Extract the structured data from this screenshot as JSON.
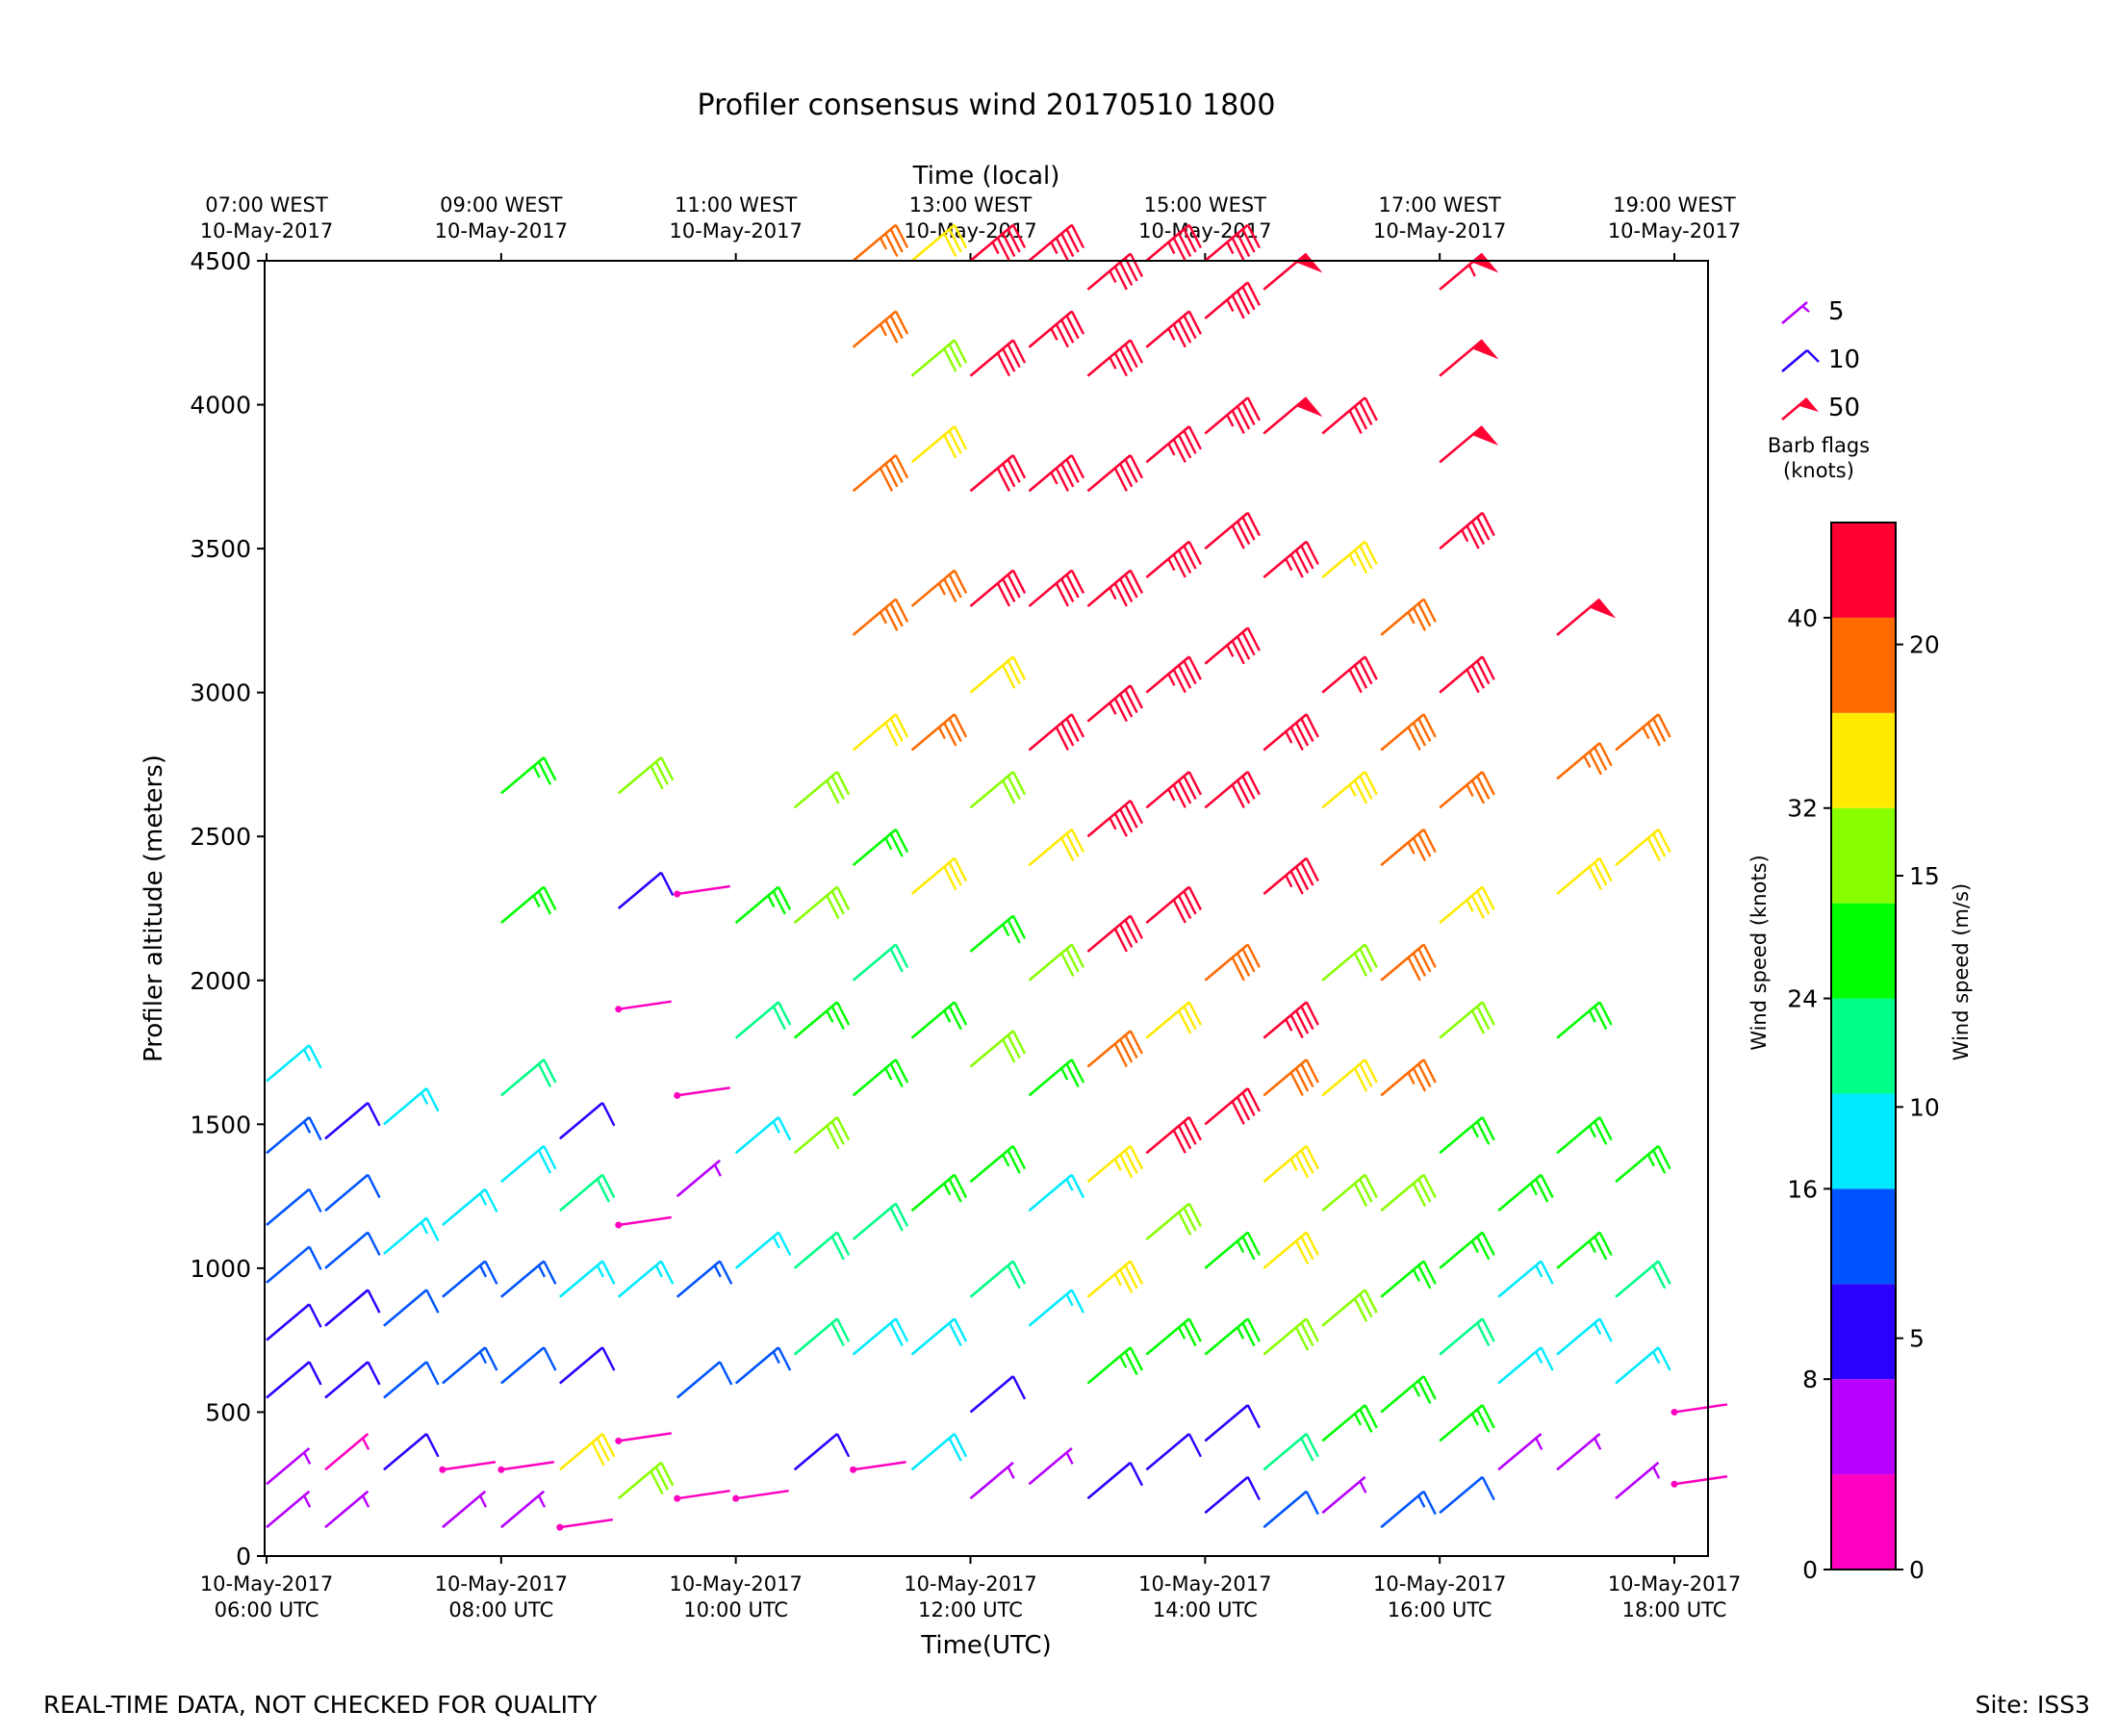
{
  "chart_data": {
    "type": "wind_barbs",
    "title": "Profiler consensus wind 20170510 1800",
    "top_axis_label": "Time (local)",
    "top_ticks": [
      {
        "line1": "07:00 WEST",
        "line2": "10-May-2017"
      },
      {
        "line1": "09:00 WEST",
        "line2": "10-May-2017"
      },
      {
        "line1": "11:00 WEST",
        "line2": "10-May-2017"
      },
      {
        "line1": "13:00 WEST",
        "line2": "10-May-2017"
      },
      {
        "line1": "15:00 WEST",
        "line2": "10-May-2017"
      },
      {
        "line1": "17:00 WEST",
        "line2": "10-May-2017"
      },
      {
        "line1": "19:00 WEST",
        "line2": "10-May-2017"
      }
    ],
    "xlabel": "Time(UTC)",
    "x_ticks": [
      {
        "line1": "10-May-2017",
        "line2": "06:00 UTC"
      },
      {
        "line1": "10-May-2017",
        "line2": "08:00 UTC"
      },
      {
        "line1": "10-May-2017",
        "line2": "10:00 UTC"
      },
      {
        "line1": "10-May-2017",
        "line2": "12:00 UTC"
      },
      {
        "line1": "10-May-2017",
        "line2": "14:00 UTC"
      },
      {
        "line1": "10-May-2017",
        "line2": "16:00 UTC"
      },
      {
        "line1": "10-May-2017",
        "line2": "18:00 UTC"
      }
    ],
    "x_hours_range": [
      6,
      18.4
    ],
    "ylabel": "Profiler altitude (meters)",
    "ylim": [
      0,
      4500
    ],
    "y_ticks": [
      "0",
      "500",
      "1000",
      "1500",
      "2000",
      "2500",
      "3000",
      "3500",
      "4000",
      "4500"
    ],
    "times_utc_hours": [
      6.0,
      6.5,
      7.0,
      7.5,
      8.0,
      8.5,
      9.0,
      9.5,
      10.0,
      10.5,
      11.0,
      11.5,
      12.0,
      12.5,
      13.0,
      13.5,
      14.0,
      14.5,
      15.0,
      15.5,
      16.0,
      16.5,
      17.0,
      17.5,
      18.0
    ],
    "series": [
      {
        "time": 6.0,
        "levels": [
          [
            100,
            5
          ],
          [
            250,
            7
          ],
          [
            550,
            10
          ],
          [
            750,
            11
          ],
          [
            950,
            12
          ],
          [
            1150,
            12
          ],
          [
            1400,
            13
          ],
          [
            1650,
            17
          ]
        ]
      },
      {
        "time": 6.5,
        "levels": [
          [
            100,
            5
          ],
          [
            300,
            3
          ],
          [
            550,
            9
          ],
          [
            800,
            11
          ],
          [
            1000,
            12
          ],
          [
            1200,
            12
          ],
          [
            1450,
            11
          ]
        ]
      },
      {
        "time": 7.0,
        "levels": [
          [
            300,
            9
          ],
          [
            550,
            12
          ],
          [
            800,
            12
          ],
          [
            1050,
            17
          ],
          [
            1500,
            16
          ]
        ]
      },
      {
        "time": 7.5,
        "levels": [
          [
            100,
            6
          ],
          [
            300,
            2
          ],
          [
            600,
            13
          ],
          [
            900,
            13
          ],
          [
            1150,
            17
          ]
        ]
      },
      {
        "time": 8.0,
        "levels": [
          [
            100,
            4
          ],
          [
            300,
            2
          ],
          [
            600,
            12
          ],
          [
            900,
            15
          ],
          [
            1300,
            18
          ],
          [
            1600,
            22
          ],
          [
            2200,
            24
          ],
          [
            2650,
            26
          ]
        ]
      },
      {
        "time": 8.5,
        "levels": [
          [
            100,
            2
          ],
          [
            300,
            32
          ],
          [
            600,
            11
          ],
          [
            900,
            16
          ],
          [
            1200,
            22
          ],
          [
            1450,
            9
          ]
        ]
      },
      {
        "time": 9.0,
        "levels": [
          [
            200,
            30
          ],
          [
            400,
            2
          ],
          [
            900,
            16
          ],
          [
            1150,
            2
          ],
          [
            1900,
            2
          ],
          [
            2250,
            10
          ],
          [
            2650,
            30
          ]
        ]
      },
      {
        "time": 9.5,
        "levels": [
          [
            200,
            2
          ],
          [
            550,
            12
          ],
          [
            900,
            13
          ],
          [
            1250,
            4
          ],
          [
            1600,
            2
          ],
          [
            2300,
            2
          ]
        ]
      },
      {
        "time": 10.0,
        "levels": [
          [
            200,
            2
          ],
          [
            600,
            13
          ],
          [
            1000,
            17
          ],
          [
            1400,
            17
          ],
          [
            1800,
            20
          ],
          [
            2200,
            26
          ]
        ]
      },
      {
        "time": 10.5,
        "levels": [
          [
            300,
            8
          ],
          [
            700,
            20
          ],
          [
            1000,
            22
          ],
          [
            1400,
            30
          ],
          [
            1800,
            24
          ],
          [
            2200,
            30
          ],
          [
            2600,
            31
          ]
        ]
      },
      {
        "time": 11.0,
        "levels": [
          [
            300,
            2
          ],
          [
            700,
            18
          ],
          [
            1100,
            22
          ],
          [
            1600,
            24
          ],
          [
            2000,
            22
          ],
          [
            2400,
            26
          ],
          [
            2800,
            32
          ],
          [
            3200,
            36
          ],
          [
            3700,
            38
          ],
          [
            4200,
            36
          ],
          [
            4500,
            36
          ]
        ]
      },
      {
        "time": 11.5,
        "levels": [
          [
            300,
            18
          ],
          [
            700,
            18
          ],
          [
            1200,
            25
          ],
          [
            1800,
            27
          ],
          [
            2300,
            32
          ],
          [
            2800,
            36
          ],
          [
            3300,
            36
          ],
          [
            3800,
            32
          ],
          [
            4100,
            30
          ],
          [
            4500,
            32
          ]
        ]
      },
      {
        "time": 12.0,
        "levels": [
          [
            200,
            6
          ],
          [
            500,
            8
          ],
          [
            900,
            20
          ],
          [
            1300,
            24
          ],
          [
            1700,
            28
          ],
          [
            2100,
            26
          ],
          [
            2600,
            30
          ],
          [
            3000,
            32
          ],
          [
            3300,
            40
          ],
          [
            3700,
            40
          ],
          [
            4100,
            42
          ],
          [
            4500,
            44
          ]
        ]
      },
      {
        "time": 12.5,
        "levels": [
          [
            250,
            6
          ],
          [
            800,
            16
          ],
          [
            1200,
            17
          ],
          [
            1600,
            26
          ],
          [
            2000,
            30
          ],
          [
            2400,
            32
          ],
          [
            2800,
            40
          ],
          [
            3300,
            42
          ],
          [
            3700,
            44
          ],
          [
            4200,
            44
          ],
          [
            4500,
            46
          ]
        ]
      },
      {
        "time": 13.0,
        "levels": [
          [
            200,
            10
          ],
          [
            600,
            24
          ],
          [
            900,
            34
          ],
          [
            1300,
            34
          ],
          [
            1700,
            38
          ],
          [
            2100,
            42
          ],
          [
            2500,
            44
          ],
          [
            2900,
            46
          ],
          [
            3300,
            44
          ],
          [
            3700,
            42
          ],
          [
            4100,
            44
          ],
          [
            4400,
            44
          ]
        ]
      },
      {
        "time": 13.5,
        "levels": [
          [
            300,
            9
          ],
          [
            700,
            26
          ],
          [
            1100,
            30
          ],
          [
            1400,
            42
          ],
          [
            1800,
            32
          ],
          [
            2200,
            42
          ],
          [
            2600,
            44
          ],
          [
            3000,
            44
          ],
          [
            3400,
            46
          ],
          [
            3800,
            44
          ],
          [
            4200,
            46
          ],
          [
            4500,
            46
          ]
        ]
      },
      {
        "time": 14.0,
        "levels": [
          [
            150,
            8
          ],
          [
            400,
            10
          ],
          [
            700,
            26
          ],
          [
            1000,
            24
          ],
          [
            1500,
            40
          ],
          [
            2000,
            38
          ],
          [
            2600,
            42
          ],
          [
            3100,
            44
          ],
          [
            3500,
            42
          ],
          [
            3900,
            44
          ],
          [
            4300,
            44
          ],
          [
            4500,
            46
          ]
        ]
      },
      {
        "time": 14.5,
        "levels": [
          [
            100,
            12
          ],
          [
            300,
            20
          ],
          [
            700,
            28
          ],
          [
            1000,
            32
          ],
          [
            1300,
            34
          ],
          [
            1600,
            38
          ],
          [
            1800,
            44
          ],
          [
            2300,
            46
          ],
          [
            2800,
            44
          ],
          [
            3400,
            46
          ],
          [
            3900,
            48
          ],
          [
            4400,
            52
          ]
        ]
      },
      {
        "time": 15.0,
        "levels": [
          [
            150,
            6
          ],
          [
            400,
            26
          ],
          [
            800,
            28
          ],
          [
            1200,
            30
          ],
          [
            1600,
            32
          ],
          [
            2000,
            30
          ],
          [
            2600,
            34
          ],
          [
            3000,
            42
          ],
          [
            3400,
            34
          ],
          [
            3900,
            40
          ]
        ]
      },
      {
        "time": 15.5,
        "levels": [
          [
            100,
            14
          ],
          [
            500,
            24
          ],
          [
            900,
            26
          ],
          [
            1200,
            30
          ],
          [
            1600,
            36
          ],
          [
            2000,
            38
          ],
          [
            2400,
            36
          ],
          [
            2800,
            38
          ],
          [
            3200,
            36
          ]
        ]
      },
      {
        "time": 16.0,
        "levels": [
          [
            150,
            12
          ],
          [
            400,
            26
          ],
          [
            700,
            22
          ],
          [
            1000,
            26
          ],
          [
            1400,
            24
          ],
          [
            1800,
            30
          ],
          [
            2200,
            34
          ],
          [
            2600,
            36
          ],
          [
            3000,
            40
          ],
          [
            3500,
            44
          ],
          [
            3800,
            50
          ],
          [
            4100,
            52
          ],
          [
            4400,
            54
          ]
        ]
      },
      {
        "time": 16.5,
        "levels": [
          [
            300,
            6
          ],
          [
            600,
            16
          ],
          [
            900,
            16
          ],
          [
            1200,
            24
          ]
        ]
      },
      {
        "time": 17.0,
        "levels": [
          [
            300,
            6
          ],
          [
            700,
            16
          ],
          [
            1000,
            24
          ],
          [
            1400,
            26
          ],
          [
            1800,
            26
          ],
          [
            2300,
            32
          ],
          [
            2700,
            36
          ],
          [
            3200,
            52
          ]
        ]
      },
      {
        "time": 17.5,
        "levels": [
          [
            200,
            6
          ],
          [
            600,
            16
          ],
          [
            900,
            20
          ],
          [
            1300,
            26
          ],
          [
            2400,
            32
          ],
          [
            2800,
            36
          ]
        ]
      },
      {
        "time": 18.0,
        "levels": [
          [
            250,
            2
          ],
          [
            500,
            2
          ]
        ]
      }
    ],
    "barb_legend_title": "Barb flags\n(knots)",
    "barb_legend": [
      {
        "label": "5",
        "knots": 5
      },
      {
        "label": "10",
        "knots": 10
      },
      {
        "label": "50",
        "knots": 50
      }
    ],
    "colorbar": {
      "left_label": "Wind speed (knots)",
      "right_label": "Wind speed (m/s)",
      "left_ticks": [
        "0",
        "8",
        "16",
        "24",
        "32",
        "40"
      ],
      "right_ticks": [
        "0",
        "5",
        "10",
        "15",
        "20"
      ],
      "range_knots": [
        0,
        44
      ],
      "bounds_knots": [
        0,
        4,
        8,
        12,
        16,
        20,
        24,
        28,
        32,
        36,
        40,
        44
      ],
      "colors": [
        "#ff00c0",
        "#b700ff",
        "#2b00ff",
        "#0054ff",
        "#00eaff",
        "#00ff88",
        "#00ff00",
        "#88ff00",
        "#ffea00",
        "#ff6a00",
        "#ff0033"
      ]
    }
  },
  "footer": {
    "left": "REAL-TIME DATA, NOT CHECKED FOR QUALITY",
    "right": "Site: ISS3"
  }
}
